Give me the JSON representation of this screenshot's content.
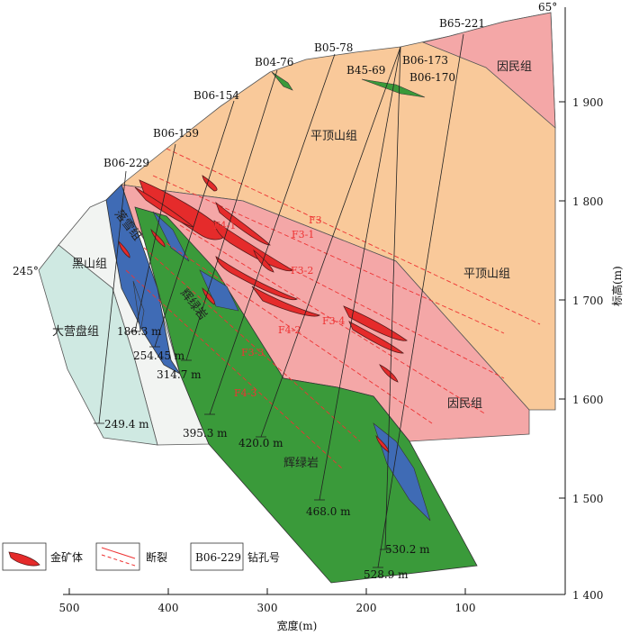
{
  "orientation": {
    "left": "245°",
    "right": "65°"
  },
  "axes": {
    "x_title": "宽度(m)",
    "y_title": "标高(m)",
    "x_ticks": [
      "500",
      "400",
      "300",
      "200",
      "100"
    ],
    "y_ticks": [
      "1 900",
      "1 800",
      "1 700",
      "1 600",
      "1 500",
      "1 400"
    ]
  },
  "drillholes": [
    "B06-229",
    "B06-159",
    "B06-154",
    "B04-76",
    "B05-78",
    "B45-69",
    "B06-173",
    "B06-170",
    "B65-221"
  ],
  "depths": [
    "186.3 m",
    "254.45 m",
    "314.7 m",
    "249.4 m",
    "395.3 m",
    "420.0 m",
    "468.0 m",
    "530.2 m",
    "528.9 m"
  ],
  "units": {
    "yinmin_top": "因民组",
    "pingdingshan_top": "平顶山组",
    "pingdingshan_right": "平顶山组",
    "yinmin_mid": "因民组",
    "luoxue": "落雪组",
    "heishan": "黑山组",
    "dayingpan": "大营盘组",
    "huilvyan_left": "辉绿岩",
    "huilvyan_bottom": "辉绿岩"
  },
  "faults": [
    "F3",
    "F3-1",
    "F3-2",
    "F3-3",
    "F4-1",
    "F4-2",
    "F4-3",
    "F3-4"
  ],
  "legend": {
    "ore_label": "金矿体",
    "fault_label": "断裂",
    "hole_sample": "B06-229",
    "hole_label": "钻孔号"
  },
  "colors": {
    "pingdingshan": "#f9c99a",
    "yinmin": "#f4a7a7",
    "diabase": "#3a9a3a",
    "luoxue": "#3f6bb5",
    "heishan": "#f2f4f2",
    "dayingpan": "#cfe9e2",
    "ore": "#e52b2b"
  }
}
